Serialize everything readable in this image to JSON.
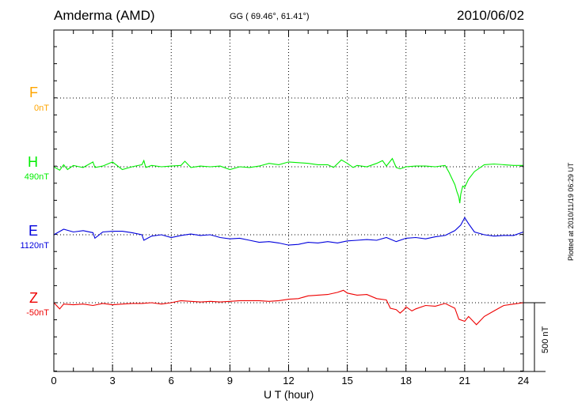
{
  "header": {
    "station": "Amderma (AMD)",
    "coords": "GG ( 69.46°,  61.41°)",
    "date": "2010/06/02"
  },
  "footer": {
    "plotted": "Plotted at 2010/11/19 06:29 UT",
    "scale_label": "500 nT"
  },
  "chart_data": {
    "type": "line",
    "title": "Amderma (AMD)",
    "xlabel": "U T (hour)",
    "ylabel": "",
    "xlim": [
      0,
      24
    ],
    "xticks": [
      "0",
      "3",
      "6",
      "9",
      "12",
      "15",
      "18",
      "21",
      "24"
    ],
    "grid": true,
    "scale_bar_nT": 500,
    "series": [
      {
        "name": "F",
        "baseline_label": "0nT",
        "color": "#ffa500",
        "x": [],
        "values": []
      },
      {
        "name": "H",
        "baseline_label": "490nT",
        "color": "#00ee00",
        "x": [
          0,
          0.3,
          0.5,
          0.7,
          1.0,
          1.3,
          1.5,
          2.0,
          2.1,
          2.5,
          3.0,
          3.5,
          4.0,
          4.5,
          4.6,
          4.7,
          5.0,
          5.5,
          6.0,
          6.5,
          6.7,
          7.0,
          7.5,
          8.0,
          8.5,
          9.0,
          9.5,
          10.0,
          10.5,
          11.0,
          11.5,
          12.0,
          12.5,
          13.0,
          13.5,
          14.0,
          14.3,
          14.7,
          15.0,
          15.3,
          15.5,
          16.0,
          16.5,
          16.8,
          17.0,
          17.3,
          17.5,
          17.7,
          18.0,
          18.5,
          19.0,
          19.5,
          20.0,
          20.2,
          20.4,
          20.5,
          20.6,
          20.7,
          20.75,
          20.8,
          20.9,
          21.0,
          21.2,
          21.5,
          22.0,
          22.5,
          23.0,
          23.5,
          24.0
        ],
        "values": [
          0,
          -25,
          15,
          -20,
          10,
          0,
          -5,
          35,
          -5,
          5,
          35,
          -20,
          0,
          15,
          45,
          -5,
          10,
          0,
          5,
          10,
          40,
          -5,
          5,
          0,
          5,
          -20,
          0,
          -5,
          5,
          25,
          15,
          35,
          30,
          25,
          15,
          15,
          -5,
          50,
          25,
          -5,
          10,
          0,
          25,
          45,
          5,
          60,
          -5,
          -15,
          0,
          5,
          5,
          0,
          10,
          -40,
          -100,
          -130,
          -180,
          -220,
          -265,
          -200,
          -140,
          -150,
          -90,
          -35,
          15,
          20,
          15,
          10,
          10
        ]
      },
      {
        "name": "E",
        "baseline_label": "1120nT",
        "color": "#0000dd",
        "x": [
          0,
          0.5,
          1.0,
          1.5,
          2.0,
          2.1,
          2.5,
          3.0,
          3.5,
          4.0,
          4.5,
          4.6,
          5.0,
          5.5,
          6.0,
          6.5,
          7.0,
          7.5,
          8.0,
          8.5,
          9.0,
          9.5,
          10.0,
          10.5,
          11.0,
          11.5,
          12.0,
          12.5,
          13.0,
          13.5,
          14.0,
          14.5,
          15.0,
          15.5,
          16.0,
          16.5,
          17.0,
          17.5,
          18.0,
          18.5,
          19.0,
          19.5,
          20.0,
          20.5,
          20.8,
          21.0,
          21.2,
          21.5,
          22.0,
          22.5,
          23.0,
          23.5,
          24.0
        ],
        "values": [
          0,
          40,
          20,
          30,
          15,
          -25,
          20,
          25,
          25,
          15,
          0,
          -40,
          -10,
          0,
          -20,
          -5,
          5,
          -5,
          0,
          -20,
          -30,
          -25,
          -40,
          -55,
          -50,
          -60,
          -75,
          -70,
          -55,
          -60,
          -50,
          -60,
          -45,
          -40,
          -35,
          -40,
          -20,
          -50,
          -25,
          -20,
          -30,
          -15,
          -5,
          30,
          70,
          125,
          80,
          20,
          0,
          -10,
          -5,
          -5,
          20
        ]
      },
      {
        "name": "Z",
        "baseline_label": "-50nT",
        "color": "#ee0000",
        "x": [
          0,
          0.3,
          0.5,
          1.0,
          1.5,
          2.0,
          2.5,
          3.0,
          3.5,
          4.0,
          4.5,
          5.0,
          5.5,
          6.0,
          6.5,
          7.0,
          7.5,
          8.0,
          8.5,
          9.0,
          9.5,
          10.0,
          10.5,
          11.0,
          11.5,
          12.0,
          12.5,
          13.0,
          13.5,
          14.0,
          14.5,
          14.8,
          15.0,
          15.5,
          16.0,
          16.5,
          17.0,
          17.2,
          17.5,
          17.7,
          17.9,
          18.0,
          18.3,
          18.5,
          19.0,
          19.5,
          20.0,
          20.5,
          20.7,
          21.0,
          21.2,
          21.4,
          21.6,
          22.0,
          22.5,
          23.0,
          23.5,
          24.0
        ],
        "values": [
          0,
          -45,
          -10,
          -15,
          -10,
          -20,
          -5,
          -15,
          -10,
          -5,
          -5,
          0,
          -10,
          0,
          15,
          10,
          5,
          10,
          5,
          10,
          15,
          15,
          15,
          10,
          15,
          25,
          30,
          50,
          55,
          60,
          75,
          90,
          70,
          55,
          60,
          30,
          20,
          -40,
          -50,
          -75,
          -50,
          -30,
          -60,
          -45,
          -20,
          -25,
          -5,
          -40,
          -120,
          -135,
          -100,
          -130,
          -160,
          -100,
          -60,
          -20,
          -10,
          0
        ]
      }
    ]
  }
}
